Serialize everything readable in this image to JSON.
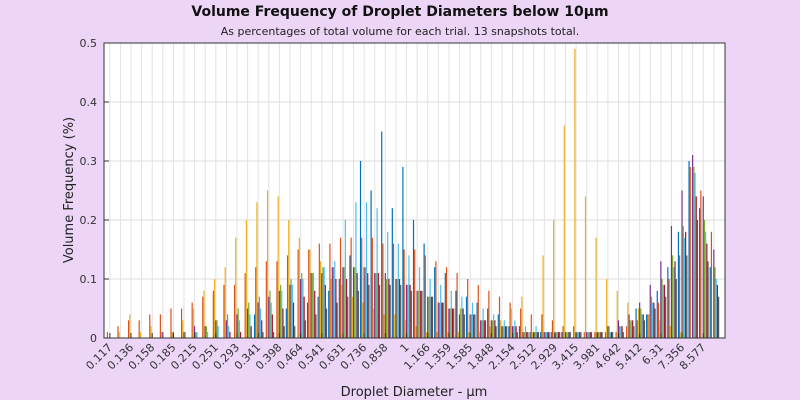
{
  "chart_data": {
    "type": "bar",
    "title": "Volume Frequency of Droplet Diameters below 10μm",
    "subtitle": "As percentages of total volume for each trial. 13 snapshots total.",
    "xlabel": "Droplet Diameter - μm",
    "ylabel": "Volume Frequency (%)",
    "ylim": [
      0,
      0.5
    ],
    "yticks": [
      0,
      0.1,
      0.2,
      0.3,
      0.4,
      0.5
    ],
    "grid": true,
    "x_tick_labels": [
      "0.117",
      "0.136",
      "0.158",
      "0.185",
      "0.215",
      "0.251",
      "0.293",
      "0.341",
      "0.398",
      "0.464",
      "0.541",
      "0.631",
      "0.736",
      "0.858",
      "1",
      "1.166",
      "1.359",
      "1.585",
      "1.848",
      "2.154",
      "2.512",
      "2.929",
      "3.415",
      "3.981",
      "4.642",
      "5.412",
      "6.31",
      "7.356",
      "8.577"
    ],
    "categories": [
      "0.117",
      "0.126",
      "0.136",
      "0.147",
      "0.158",
      "0.171",
      "0.185",
      "0.200",
      "0.215",
      "0.233",
      "0.251",
      "0.271",
      "0.293",
      "0.316",
      "0.341",
      "0.369",
      "0.398",
      "0.430",
      "0.464",
      "0.501",
      "0.541",
      "0.585",
      "0.631",
      "0.681",
      "0.736",
      "0.794",
      "0.858",
      "0.926",
      "1",
      "1.080",
      "1.166",
      "1.259",
      "1.359",
      "1.468",
      "1.585",
      "1.711",
      "1.848",
      "1.995",
      "2.154",
      "2.326",
      "2.512",
      "2.712",
      "2.929",
      "3.162",
      "3.415",
      "3.687",
      "3.981",
      "4.299",
      "4.642",
      "5.012",
      "5.412",
      "5.843",
      "6.31",
      "6.813",
      "7.356",
      "7.943",
      "8.577",
      "9.261"
    ],
    "series": [
      {
        "color": "#0072bd",
        "values": [
          0,
          0,
          0,
          0,
          0,
          0,
          0,
          0,
          0,
          0,
          0,
          0,
          0,
          0,
          0.04,
          0,
          0,
          0.05,
          0,
          0.06,
          0.07,
          0.08,
          0.1,
          0.14,
          0.3,
          0.25,
          0.35,
          0.22,
          0.29,
          0.2,
          0.16,
          0.12,
          0.11,
          0.08,
          0.07,
          0.06,
          0.05,
          0.04,
          0.02,
          0.02,
          0.01,
          0.01,
          0.01,
          0.01,
          0,
          0,
          0,
          0,
          0,
          0,
          0.05,
          0.04,
          0.08,
          0.12,
          0.18,
          0.3,
          0.22,
          0.12
        ]
      },
      {
        "color": "#d95319",
        "values": [
          0.01,
          0.02,
          0.03,
          0.03,
          0.04,
          0.04,
          0.05,
          0.05,
          0.06,
          0.07,
          0.08,
          0.09,
          0.09,
          0.11,
          0.12,
          0.13,
          0.13,
          0.14,
          0.15,
          0.15,
          0.16,
          0.16,
          0.17,
          0.17,
          0.17,
          0.17,
          0.16,
          0.16,
          0.15,
          0.15,
          0.14,
          0.13,
          0.12,
          0.11,
          0.1,
          0.09,
          0.08,
          0.07,
          0.06,
          0.05,
          0.04,
          0.04,
          0.03,
          0.02,
          0.02,
          0.01,
          0.01,
          0.01,
          0.01,
          0.02,
          0.03,
          0.04,
          0.06,
          0.1,
          0.14,
          0.29,
          0.25,
          0.18
        ]
      },
      {
        "color": "#edb120",
        "values": [
          0,
          0.01,
          0.04,
          0.01,
          0.02,
          0.01,
          0.01,
          0.03,
          0.05,
          0.08,
          0.1,
          0.12,
          0.17,
          0.2,
          0.23,
          0.25,
          0.24,
          0.2,
          0.17,
          0.15,
          0.13,
          0.1,
          0.09,
          0.07,
          0.06,
          0.05,
          0.04,
          0.04,
          0.03,
          0.02,
          0.01,
          0.01,
          0.01,
          0.01,
          0.01,
          0.01,
          0.02,
          0.03,
          0.05,
          0.07,
          0.01,
          0.14,
          0.2,
          0.36,
          0.49,
          0.24,
          0.17,
          0.1,
          0.08,
          0.06,
          0.05,
          0.04,
          0.03,
          0.02,
          0.01,
          0,
          0,
          0
        ]
      },
      {
        "color": "#7e2f8e",
        "values": [
          0,
          0,
          0,
          0,
          0,
          0.01,
          0.01,
          0.01,
          0.02,
          0.02,
          0.03,
          0.03,
          0.04,
          0.05,
          0.06,
          0.07,
          0.08,
          0.09,
          0.1,
          0.11,
          0.11,
          0.12,
          0.12,
          0.12,
          0.12,
          0.11,
          0.11,
          0.1,
          0.09,
          0.08,
          0.07,
          0.06,
          0.05,
          0.04,
          0.04,
          0.03,
          0.03,
          0.02,
          0.02,
          0.01,
          0.01,
          0.01,
          0.01,
          0.01,
          0.01,
          0.01,
          0.01,
          0.02,
          0.03,
          0.04,
          0.06,
          0.09,
          0.13,
          0.19,
          0.25,
          0.31,
          0.24,
          0.15
        ]
      },
      {
        "color": "#77ac30",
        "values": [
          0,
          0,
          0,
          0,
          0,
          0,
          0,
          0.01,
          0.01,
          0.02,
          0.03,
          0.04,
          0.05,
          0.06,
          0.07,
          0.08,
          0.09,
          0.1,
          0.11,
          0.11,
          0.12,
          0.12,
          0.12,
          0.12,
          0.12,
          0.11,
          0.1,
          0.1,
          0.09,
          0.08,
          0.07,
          0.06,
          0.05,
          0.05,
          0.04,
          0.03,
          0.03,
          0.02,
          0.02,
          0.01,
          0.01,
          0.01,
          0.01,
          0.01,
          0.01,
          0.01,
          0.01,
          0.02,
          0.02,
          0.03,
          0.05,
          0.07,
          0.1,
          0.14,
          0.19,
          0.29,
          0.2,
          0.12
        ]
      },
      {
        "color": "#4dbeee",
        "values": [
          0,
          0,
          0,
          0,
          0,
          0,
          0,
          0,
          0.01,
          0.01,
          0.02,
          0.02,
          0.03,
          0.04,
          0.05,
          0.06,
          0.08,
          0.09,
          0.1,
          0.11,
          0.12,
          0.13,
          0.2,
          0.23,
          0.23,
          0.22,
          0.18,
          0.16,
          0.14,
          0.12,
          0.1,
          0.09,
          0.08,
          0.07,
          0.06,
          0.05,
          0.04,
          0.03,
          0.03,
          0.02,
          0.02,
          0.01,
          0.01,
          0.01,
          0.01,
          0.01,
          0.01,
          0.01,
          0.02,
          0.03,
          0.04,
          0.06,
          0.09,
          0.12,
          0.17,
          0.28,
          0.18,
          0.1
        ]
      },
      {
        "color": "#a2142f",
        "values": [
          0,
          0,
          0,
          0,
          0,
          0,
          0,
          0,
          0,
          0,
          0,
          0.01,
          0.01,
          0.02,
          0.03,
          0.04,
          0.05,
          0.06,
          0.07,
          0.08,
          0.09,
          0.1,
          0.1,
          0.11,
          0.11,
          0.11,
          0.1,
          0.1,
          0.09,
          0.08,
          0.07,
          0.06,
          0.05,
          0.05,
          0.04,
          0.03,
          0.03,
          0.02,
          0.02,
          0.01,
          0.01,
          0.01,
          0.01,
          0.01,
          0.01,
          0.01,
          0.01,
          0.01,
          0.02,
          0.03,
          0.04,
          0.06,
          0.09,
          0.13,
          0.18,
          0.24,
          0.16,
          0.09
        ]
      },
      {
        "color": "#555555",
        "values": [
          0,
          0,
          0,
          0,
          0,
          0,
          0,
          0,
          0,
          0,
          0,
          0,
          0,
          0,
          0.01,
          0.01,
          0.02,
          0.02,
          0.03,
          0.04,
          0.05,
          0.06,
          0.07,
          0.08,
          0.09,
          0.09,
          0.09,
          0.09,
          0.08,
          0.08,
          0.07,
          0.06,
          0.05,
          0.04,
          0.04,
          0.03,
          0.02,
          0.02,
          0.01,
          0.01,
          0.01,
          0.01,
          0.01,
          0.01,
          0.01,
          0.01,
          0.01,
          0.01,
          0.01,
          0.02,
          0.03,
          0.05,
          0.07,
          0.1,
          0.14,
          0.2,
          0.13,
          0.07
        ]
      }
    ]
  }
}
